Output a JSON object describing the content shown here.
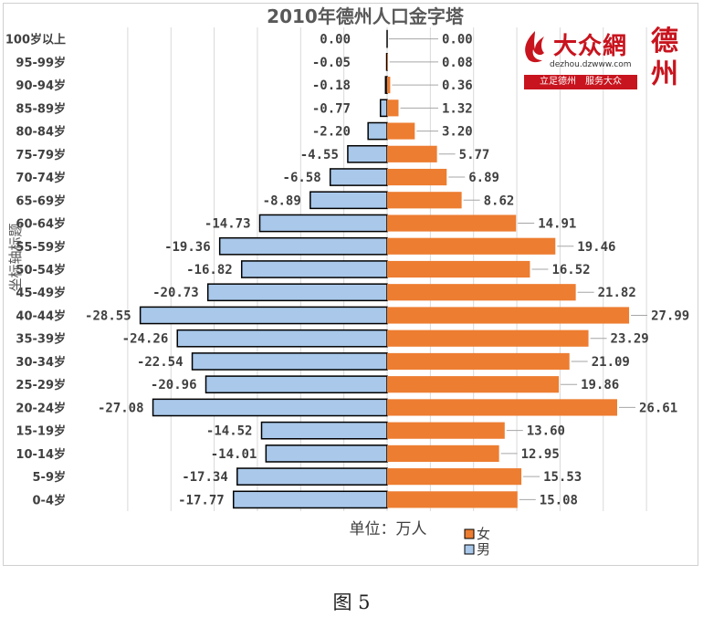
{
  "chart_data": {
    "type": "bar",
    "orientation": "horizontal",
    "title": "2010年德州人口金字塔",
    "xlabel": "单位：万人",
    "ylabel": "坐标轴标题",
    "xlim": [
      -30,
      30
    ],
    "grid": true,
    "legend_position": "bottom-center",
    "categories": [
      "0-4岁",
      "5-9岁",
      "10-14岁",
      "15-19岁",
      "20-24岁",
      "25-29岁",
      "30-34岁",
      "35-39岁",
      "40-44岁",
      "45-49岁",
      "50-54岁",
      "55-59岁",
      "60-64岁",
      "65-69岁",
      "70-74岁",
      "75-79岁",
      "80-84岁",
      "85-89岁",
      "90-94岁",
      "95-99岁",
      "100岁以上"
    ],
    "series": [
      {
        "name": "女",
        "color": "#ed7d31",
        "values": [
          15.08,
          15.53,
          12.95,
          13.6,
          26.61,
          19.86,
          21.09,
          23.29,
          27.99,
          21.82,
          16.52,
          19.46,
          14.91,
          8.62,
          6.89,
          5.77,
          3.2,
          1.32,
          0.36,
          0.08,
          0.0
        ],
        "labels": [
          "15.08",
          "15.53",
          "12.95",
          "13.60",
          "26.61",
          "19.86",
          "21.09",
          "23.29",
          "27.99",
          "21.82",
          "16.52",
          "19.46",
          "14.91",
          "8.62",
          "6.89",
          "5.77",
          "3.20",
          "1.32",
          "0.36",
          "0.08",
          "0.00"
        ]
      },
      {
        "name": "男",
        "color": "#a9c8ea",
        "values": [
          -17.77,
          -17.34,
          -14.01,
          -14.52,
          -27.08,
          -20.96,
          -22.54,
          -24.26,
          -28.55,
          -20.73,
          -16.82,
          -19.36,
          -14.73,
          -8.89,
          -6.58,
          -4.55,
          -2.2,
          -0.77,
          -0.18,
          -0.05,
          0.0
        ],
        "labels": [
          "-17.77",
          "-17.34",
          "-14.01",
          "-14.52",
          "-27.08",
          "-20.96",
          "-22.54",
          "-24.26",
          "-28.55",
          "-20.73",
          "-16.82",
          "-19.36",
          "-14.73",
          "-8.89",
          "-6.58",
          "-4.55",
          "-2.20",
          "-0.77",
          "-0.18",
          "-0.05",
          "0.00"
        ]
      }
    ]
  },
  "logo": {
    "brand": "大众網",
    "url": "dezhou.dzwww.com",
    "slogan": "立足德州　服务大众",
    "city": "德州"
  },
  "caption": "图 5"
}
